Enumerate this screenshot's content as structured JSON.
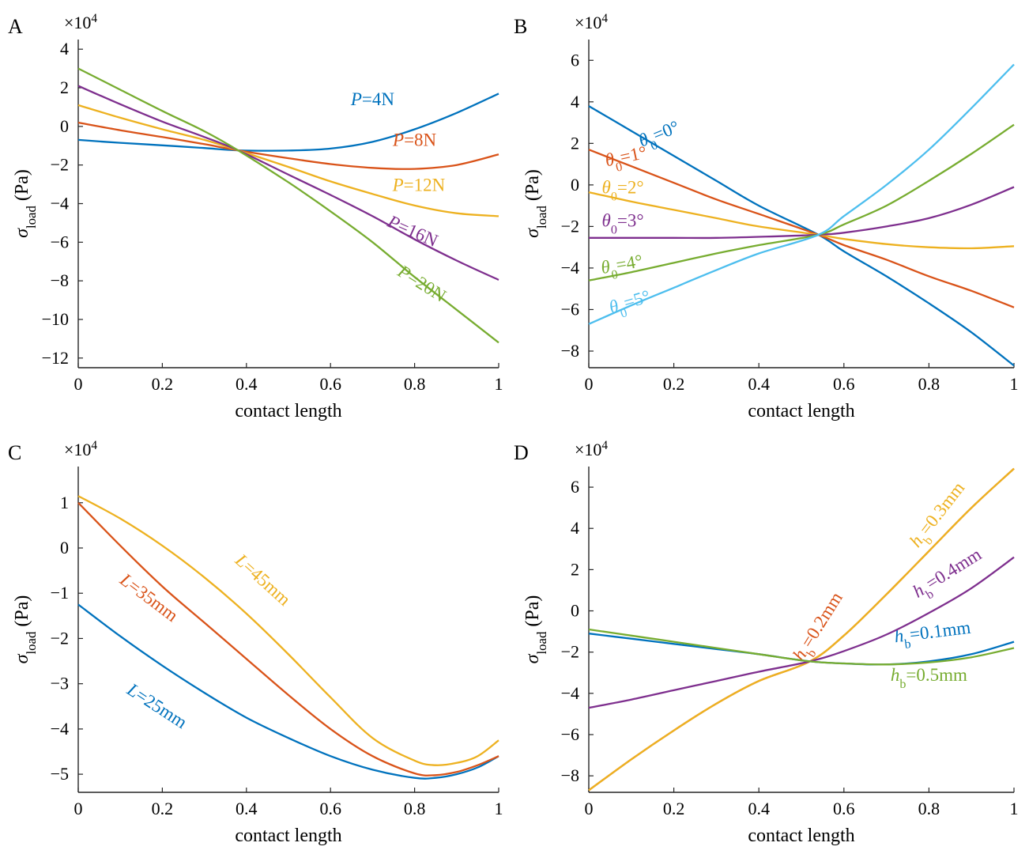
{
  "chart_data": [
    {
      "panel": "A",
      "type": "line",
      "multiplier": "×10",
      "multiplier_exp": "4",
      "xlabel": "contact length",
      "ylabel_sym": "σ",
      "ylabel_sub": "load",
      "ylabel_unit": " (Pa)",
      "xlim": [
        0,
        1
      ],
      "ylim": [
        -12.5,
        4.5
      ],
      "xticks": [
        0,
        0.2,
        0.4,
        0.6,
        0.8,
        1
      ],
      "xtick_labels": [
        "0",
        "0.2",
        "0.4",
        "0.6",
        "0.8",
        "1"
      ],
      "yticks": [
        4,
        2,
        0,
        -2,
        -4,
        -6,
        -8,
        -10,
        -12
      ],
      "ytick_labels": [
        "4",
        "2",
        "0",
        "−2",
        "−4",
        "−6",
        "−8",
        "−10",
        "−12"
      ],
      "x": [
        0,
        0.1,
        0.2,
        0.3,
        0.38,
        0.5,
        0.6,
        0.7,
        0.8,
        0.9,
        1.0
      ],
      "series": [
        {
          "name": "P=4N",
          "sym": "P",
          "sub": "",
          "rest": "=4N",
          "color": "#0072BD",
          "values": [
            -0.7,
            -0.85,
            -0.98,
            -1.12,
            -1.24,
            -1.25,
            -1.15,
            -0.8,
            -0.15,
            0.7,
            1.7
          ],
          "label_x": 0.7,
          "label_y": 1.1,
          "label_rot": 0
        },
        {
          "name": "P=8N",
          "sym": "P",
          "sub": "",
          "rest": "=8N",
          "color": "#D95319",
          "values": [
            0.2,
            -0.2,
            -0.55,
            -0.92,
            -1.24,
            -1.65,
            -1.95,
            -2.15,
            -2.2,
            -2.0,
            -1.45
          ],
          "label_x": 0.8,
          "label_y": -1.0,
          "label_rot": 0
        },
        {
          "name": "P=12N",
          "sym": "P",
          "sub": "",
          "rest": "=12N",
          "color": "#EDB120",
          "values": [
            1.1,
            0.45,
            -0.15,
            -0.7,
            -1.24,
            -2.1,
            -2.85,
            -3.5,
            -4.1,
            -4.5,
            -4.65
          ],
          "label_x": 0.81,
          "label_y": -3.35,
          "label_rot": 0
        },
        {
          "name": "P=16N",
          "sym": "P",
          "sub": "",
          "rest": "=16N",
          "color": "#7E2F8E",
          "values": [
            2.1,
            1.15,
            0.25,
            -0.55,
            -1.24,
            -2.5,
            -3.55,
            -4.65,
            -5.85,
            -6.95,
            -7.95
          ],
          "label_x": 0.79,
          "label_y": -5.7,
          "label_rot": 24
        },
        {
          "name": "P=20N",
          "sym": "P",
          "sub": "",
          "rest": "=20N",
          "color": "#77AC30",
          "values": [
            3.0,
            1.9,
            0.8,
            -0.25,
            -1.24,
            -2.9,
            -4.4,
            -6.0,
            -7.8,
            -9.5,
            -11.2
          ],
          "label_x": 0.81,
          "label_y": -8.4,
          "label_rot": 32
        }
      ]
    },
    {
      "panel": "B",
      "type": "line",
      "multiplier": "×10",
      "multiplier_exp": "4",
      "xlabel": "contact length",
      "ylabel_sym": "σ",
      "ylabel_sub": "load",
      "ylabel_unit": " (Pa)",
      "xlim": [
        0,
        1
      ],
      "ylim": [
        -8.8,
        7.0
      ],
      "xticks": [
        0,
        0.2,
        0.4,
        0.6,
        0.8,
        1
      ],
      "xtick_labels": [
        "0",
        "0.2",
        "0.4",
        "0.6",
        "0.8",
        "1"
      ],
      "yticks": [
        6,
        4,
        2,
        0,
        -2,
        -4,
        -6,
        -8
      ],
      "ytick_labels": [
        "6",
        "4",
        "2",
        "0",
        "−2",
        "−4",
        "−6",
        "−8"
      ],
      "x": [
        0,
        0.1,
        0.2,
        0.3,
        0.4,
        0.54,
        0.6,
        0.7,
        0.8,
        0.9,
        1.0
      ],
      "series": [
        {
          "name": "θ0=0°",
          "sym": "θ",
          "sub": "0",
          "rest": "=0°",
          "color": "#0072BD",
          "values": [
            3.8,
            2.6,
            1.4,
            0.2,
            -1.0,
            -2.4,
            -3.2,
            -4.4,
            -5.7,
            -7.1,
            -8.7
          ],
          "label_x": 0.17,
          "label_y": 2.2,
          "label_rot": -22
        },
        {
          "name": "θ0=1°",
          "sym": "θ",
          "sub": "0",
          "rest": "=1°",
          "color": "#D95319",
          "values": [
            1.7,
            0.9,
            0.1,
            -0.7,
            -1.4,
            -2.4,
            -2.9,
            -3.6,
            -4.4,
            -5.1,
            -5.9
          ],
          "label_x": 0.09,
          "label_y": 1.1,
          "label_rot": -12
        },
        {
          "name": "θ0=2°",
          "sym": "θ",
          "sub": "0",
          "rest": "=2°",
          "color": "#EDB120",
          "values": [
            -0.35,
            -0.8,
            -1.2,
            -1.6,
            -2.0,
            -2.4,
            -2.6,
            -2.85,
            -3.0,
            -3.05,
            -2.95
          ],
          "label_x": 0.08,
          "label_y": -0.4,
          "label_rot": 0
        },
        {
          "name": "θ0=3°",
          "sym": "θ",
          "sub": "0",
          "rest": "=3°",
          "color": "#7E2F8E",
          "values": [
            -2.55,
            -2.55,
            -2.55,
            -2.55,
            -2.5,
            -2.4,
            -2.3,
            -2.0,
            -1.6,
            -0.95,
            -0.1
          ],
          "label_x": 0.08,
          "label_y": -2.0,
          "label_rot": 0
        },
        {
          "name": "θ0=4°",
          "sym": "θ",
          "sub": "0",
          "rest": "=4°",
          "color": "#77AC30",
          "values": [
            -4.6,
            -4.2,
            -3.75,
            -3.3,
            -2.9,
            -2.4,
            -1.9,
            -1.0,
            0.2,
            1.5,
            2.9
          ],
          "label_x": 0.08,
          "label_y": -4.1,
          "label_rot": -10
        },
        {
          "name": "θ0=5°",
          "sym": "θ",
          "sub": "0",
          "rest": "=5°",
          "color": "#4DBEEE",
          "values": [
            -6.7,
            -5.8,
            -4.95,
            -4.1,
            -3.3,
            -2.4,
            -1.5,
            0.0,
            1.7,
            3.7,
            5.8
          ],
          "label_x": 0.1,
          "label_y": -5.9,
          "label_rot": -17
        }
      ]
    },
    {
      "panel": "C",
      "type": "line",
      "multiplier": "×10",
      "multiplier_exp": "4",
      "xlabel": "contact length",
      "ylabel_sym": "σ",
      "ylabel_sub": "load",
      "ylabel_unit": " (Pa)",
      "xlim": [
        0,
        1
      ],
      "ylim": [
        -5.4,
        1.8
      ],
      "xticks": [
        0,
        0.2,
        0.4,
        0.6,
        0.8,
        1
      ],
      "xtick_labels": [
        "0",
        "0.2",
        "0.4",
        "0.6",
        "0.8",
        "1"
      ],
      "yticks": [
        1,
        0,
        -1,
        -2,
        -3,
        -4,
        -5
      ],
      "ytick_labels": [
        "1",
        "0",
        "−1",
        "−2",
        "−3",
        "−4",
        "−5"
      ],
      "x": [
        0,
        0.1,
        0.2,
        0.3,
        0.4,
        0.5,
        0.6,
        0.7,
        0.8,
        0.85,
        0.9,
        0.95,
        1.0
      ],
      "series": [
        {
          "name": "L=25mm",
          "sym": "L",
          "sub": "",
          "rest": "=25mm",
          "color": "#0072BD",
          "values": [
            -1.25,
            -1.95,
            -2.6,
            -3.2,
            -3.75,
            -4.2,
            -4.6,
            -4.9,
            -5.08,
            -5.08,
            -5.0,
            -4.85,
            -4.6
          ],
          "label_x": 0.18,
          "label_y": -3.6,
          "label_rot": 33
        },
        {
          "name": "L=35mm",
          "sym": "L",
          "sub": "",
          "rest": "=35mm",
          "color": "#D95319",
          "values": [
            1.0,
            0.05,
            -0.85,
            -1.65,
            -2.45,
            -3.25,
            -4.0,
            -4.6,
            -4.98,
            -5.02,
            -4.95,
            -4.8,
            -4.6
          ],
          "label_x": 0.16,
          "label_y": -1.2,
          "label_rot": 37
        },
        {
          "name": "L=45mm",
          "sym": "L",
          "sub": "",
          "rest": "=45mm",
          "color": "#EDB120",
          "values": [
            1.15,
            0.65,
            0.05,
            -0.65,
            -1.45,
            -2.35,
            -3.3,
            -4.2,
            -4.7,
            -4.8,
            -4.75,
            -4.6,
            -4.25
          ],
          "label_x": 0.43,
          "label_y": -0.8,
          "label_rot": 42
        }
      ]
    },
    {
      "panel": "D",
      "type": "line",
      "multiplier": "×10",
      "multiplier_exp": "4",
      "xlabel": "contact length",
      "ylabel_sym": "σ",
      "ylabel_sub": "load",
      "ylabel_unit": " (Pa)",
      "xlim": [
        0,
        1
      ],
      "ylim": [
        -8.8,
        7.0
      ],
      "xticks": [
        0,
        0.2,
        0.4,
        0.6,
        0.8,
        1
      ],
      "xtick_labels": [
        "0",
        "0.2",
        "0.4",
        "0.6",
        "0.8",
        "1"
      ],
      "yticks": [
        6,
        4,
        2,
        0,
        -2,
        -4,
        -6,
        -8
      ],
      "ytick_labels": [
        "6",
        "4",
        "2",
        "0",
        "−2",
        "−4",
        "−6",
        "−8"
      ],
      "x": [
        0,
        0.1,
        0.2,
        0.3,
        0.4,
        0.52,
        0.6,
        0.7,
        0.8,
        0.9,
        1.0
      ],
      "series": [
        {
          "name": "hb=0.1mm",
          "sym": "h",
          "sub": "b",
          "rest": "=0.1mm",
          "color": "#0072BD",
          "values": [
            -1.1,
            -1.35,
            -1.6,
            -1.85,
            -2.1,
            -2.45,
            -2.55,
            -2.6,
            -2.45,
            -2.1,
            -1.5
          ],
          "label_x": 0.81,
          "label_y": -1.3,
          "label_rot": -7
        },
        {
          "name": "hb=0.2mm",
          "sym": "h",
          "sub": "b",
          "rest": "=0.2mm",
          "color": "#D95319",
          "values": [
            -8.7,
            -7.2,
            -5.8,
            -4.5,
            -3.4,
            -2.45,
            -1.2,
            0.8,
            2.9,
            5.0,
            6.9
          ],
          "label_x": 0.55,
          "label_y": -0.9,
          "label_rot": -58
        },
        {
          "name": "hb=0.3mm",
          "sym": "h",
          "sub": "b",
          "rest": "=0.3mm",
          "color": "#EDB120",
          "values": [
            -8.7,
            -7.2,
            -5.8,
            -4.5,
            -3.4,
            -2.45,
            -1.2,
            0.8,
            2.9,
            5.0,
            6.9
          ],
          "label_x": 0.83,
          "label_y": 4.5,
          "label_rot": -52
        },
        {
          "name": "hb=0.4mm",
          "sym": "h",
          "sub": "b",
          "rest": "=0.4mm",
          "color": "#7E2F8E",
          "values": [
            -4.7,
            -4.3,
            -3.85,
            -3.4,
            -2.95,
            -2.45,
            -1.95,
            -1.15,
            -0.1,
            1.1,
            2.6
          ],
          "label_x": 0.85,
          "label_y": 1.6,
          "label_rot": -32
        },
        {
          "name": "hb=0.5mm",
          "sym": "h",
          "sub": "b",
          "rest": "=0.5mm",
          "color": "#77AC30",
          "values": [
            -0.9,
            -1.2,
            -1.5,
            -1.8,
            -2.1,
            -2.45,
            -2.55,
            -2.6,
            -2.5,
            -2.25,
            -1.8
          ],
          "label_x": 0.8,
          "label_y": -3.4,
          "label_rot": 0
        }
      ]
    }
  ]
}
